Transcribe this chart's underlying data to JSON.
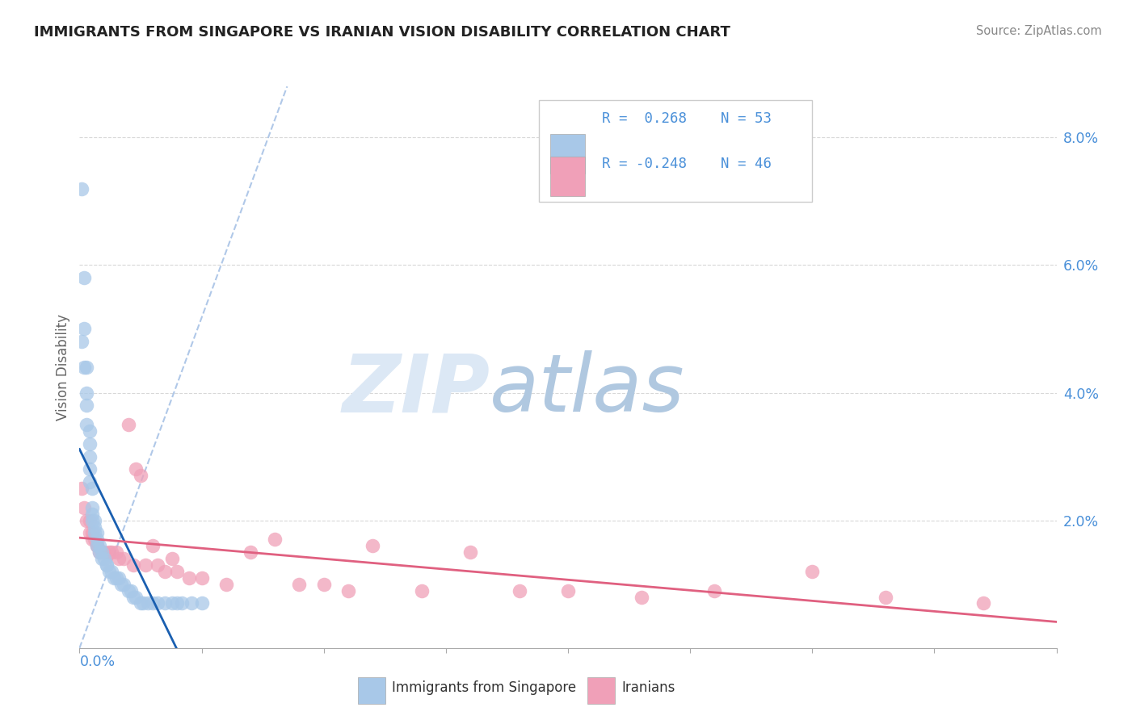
{
  "title": "IMMIGRANTS FROM SINGAPORE VS IRANIAN VISION DISABILITY CORRELATION CHART",
  "source": "Source: ZipAtlas.com",
  "ylabel": "Vision Disability",
  "xlim": [
    0.0,
    0.4
  ],
  "ylim": [
    0.0,
    0.088
  ],
  "y_ticks": [
    0.0,
    0.02,
    0.04,
    0.06,
    0.08
  ],
  "y_tick_labels": [
    "",
    "2.0%",
    "4.0%",
    "6.0%",
    "8.0%"
  ],
  "legend_r1": "R =  0.268",
  "legend_n1": "N = 53",
  "legend_r2": "R = -0.248",
  "legend_n2": "N = 46",
  "color_blue": "#a8c8e8",
  "color_pink": "#f0a0b8",
  "line_color_blue": "#1a5fb0",
  "line_color_pink": "#e06080",
  "dash_color": "#b0c8e8",
  "grid_color": "#d8d8d8",
  "watermark_zip_color": "#dce8f5",
  "watermark_atlas_color": "#b8cfe0",
  "singapore_x": [
    0.001,
    0.002,
    0.001,
    0.002,
    0.002,
    0.003,
    0.003,
    0.003,
    0.003,
    0.004,
    0.004,
    0.004,
    0.004,
    0.004,
    0.005,
    0.005,
    0.005,
    0.005,
    0.006,
    0.006,
    0.006,
    0.007,
    0.007,
    0.007,
    0.008,
    0.008,
    0.009,
    0.009,
    0.01,
    0.011,
    0.011,
    0.012,
    0.013,
    0.014,
    0.015,
    0.016,
    0.017,
    0.018,
    0.02,
    0.021,
    0.022,
    0.023,
    0.025,
    0.026,
    0.028,
    0.03,
    0.032,
    0.035,
    0.038,
    0.04,
    0.042,
    0.046,
    0.05
  ],
  "singapore_y": [
    0.072,
    0.058,
    0.048,
    0.05,
    0.044,
    0.044,
    0.04,
    0.038,
    0.035,
    0.034,
    0.032,
    0.03,
    0.028,
    0.026,
    0.025,
    0.022,
    0.021,
    0.02,
    0.02,
    0.019,
    0.018,
    0.018,
    0.017,
    0.016,
    0.016,
    0.015,
    0.015,
    0.014,
    0.014,
    0.013,
    0.013,
    0.012,
    0.012,
    0.011,
    0.011,
    0.011,
    0.01,
    0.01,
    0.009,
    0.009,
    0.008,
    0.008,
    0.007,
    0.007,
    0.007,
    0.007,
    0.007,
    0.007,
    0.007,
    0.007,
    0.007,
    0.007,
    0.007
  ],
  "iranian_x": [
    0.001,
    0.002,
    0.003,
    0.004,
    0.004,
    0.005,
    0.005,
    0.006,
    0.007,
    0.007,
    0.008,
    0.009,
    0.01,
    0.012,
    0.013,
    0.015,
    0.016,
    0.018,
    0.02,
    0.022,
    0.023,
    0.025,
    0.027,
    0.03,
    0.032,
    0.035,
    0.038,
    0.04,
    0.045,
    0.05,
    0.06,
    0.07,
    0.08,
    0.09,
    0.1,
    0.11,
    0.12,
    0.14,
    0.16,
    0.18,
    0.2,
    0.23,
    0.26,
    0.3,
    0.33,
    0.37
  ],
  "iranian_y": [
    0.025,
    0.022,
    0.02,
    0.02,
    0.018,
    0.018,
    0.017,
    0.017,
    0.016,
    0.016,
    0.015,
    0.015,
    0.015,
    0.015,
    0.015,
    0.015,
    0.014,
    0.014,
    0.035,
    0.013,
    0.028,
    0.027,
    0.013,
    0.016,
    0.013,
    0.012,
    0.014,
    0.012,
    0.011,
    0.011,
    0.01,
    0.015,
    0.017,
    0.01,
    0.01,
    0.009,
    0.016,
    0.009,
    0.015,
    0.009,
    0.009,
    0.008,
    0.009,
    0.012,
    0.008,
    0.007
  ]
}
